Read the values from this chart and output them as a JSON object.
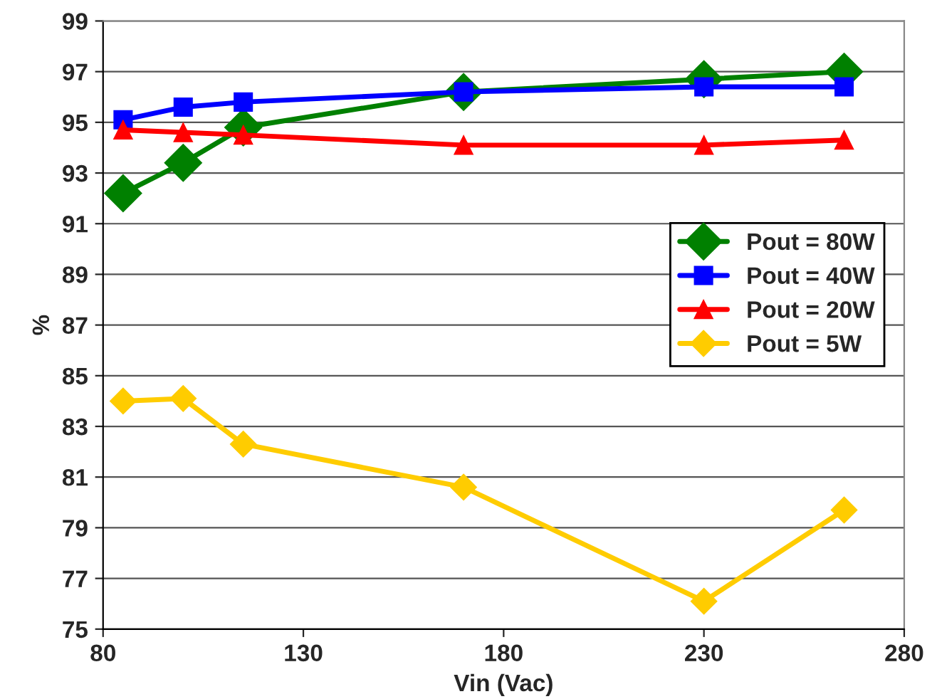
{
  "chart_data": {
    "type": "line",
    "xlabel": "Vin (Vac)",
    "ylabel": "%",
    "x": [
      85,
      100,
      115,
      170,
      230,
      265
    ],
    "xlim": [
      80,
      280
    ],
    "xticks": [
      80,
      130,
      180,
      230,
      280
    ],
    "ylim": [
      75,
      99
    ],
    "yticks": [
      75,
      77,
      79,
      81,
      83,
      85,
      87,
      89,
      91,
      93,
      95,
      97,
      99
    ],
    "grid": "y",
    "legend": "right",
    "line_style": "solid",
    "series": [
      {
        "name": "Pout = 80W",
        "color": "#008000",
        "marker": "diamond",
        "values": [
          92.2,
          93.4,
          94.8,
          96.2,
          96.7,
          97.0
        ]
      },
      {
        "name": "Pout = 40W",
        "color": "#0000ff",
        "marker": "square",
        "values": [
          95.1,
          95.6,
          95.8,
          96.2,
          96.4,
          96.4
        ]
      },
      {
        "name": "Pout = 20W",
        "color": "#ff0000",
        "marker": "triangle",
        "values": [
          94.7,
          94.6,
          94.5,
          94.1,
          94.1,
          94.3
        ]
      },
      {
        "name": "Pout = 5W",
        "color": "#ffcc00",
        "marker": "diamond",
        "values": [
          84.0,
          84.1,
          82.3,
          80.6,
          76.1,
          79.7
        ]
      }
    ]
  }
}
